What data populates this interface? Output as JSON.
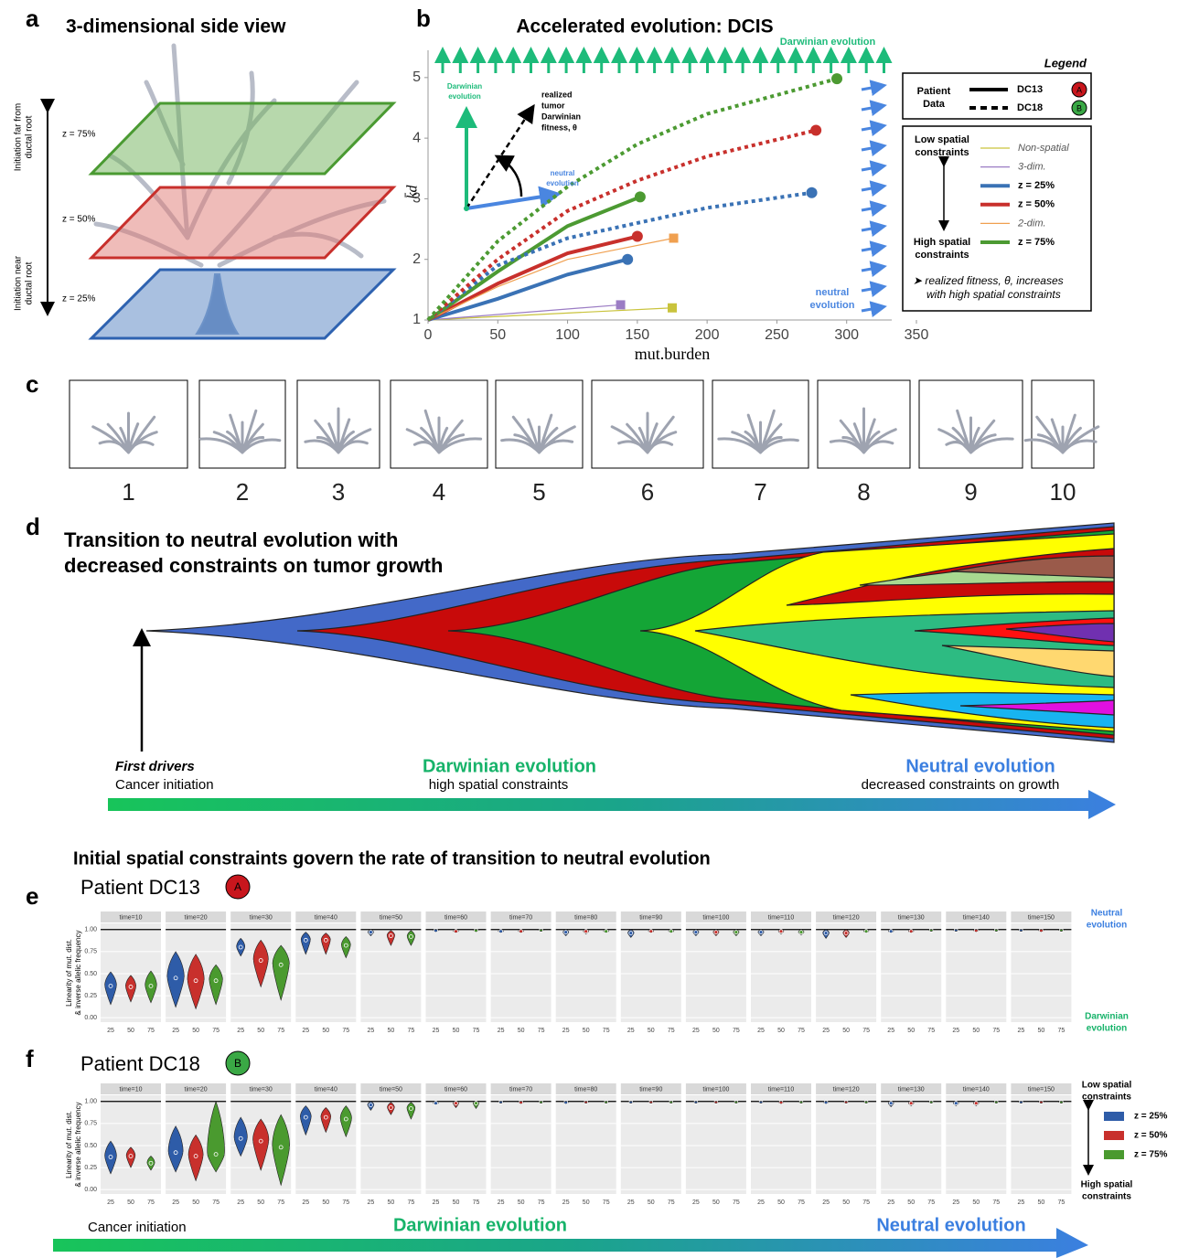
{
  "panel_labels": [
    "a",
    "b",
    "c",
    "d",
    "e",
    "f"
  ],
  "panel_a": {
    "title": "3-dimensional side view",
    "planes": [
      "z = 75%",
      "z = 50%",
      "z = 25%"
    ],
    "far_label": [
      "Initiation far from",
      "ductal root"
    ],
    "near_label": [
      "Initiation near",
      "ductal root"
    ]
  },
  "panel_c": {
    "labels": [
      "1",
      "2",
      "3",
      "4",
      "5",
      "6",
      "7",
      "8",
      "9",
      "10"
    ]
  },
  "panel_d": {
    "title": [
      "Transition to neutral evolution with",
      "decreased constraints on tumor growth"
    ],
    "start_bold": "First drivers",
    "start": "Cancer initiation",
    "middle_bold": "Darwinian evolution",
    "middle": "high spatial constraints",
    "end_bold": "Neutral evolution",
    "end": "decreased constraints on growth"
  },
  "section_title": "Initial spatial constraints govern the rate of transition to neutral evolution",
  "bottom_arrow": {
    "start": "Cancer initiation",
    "middle": "Darwinian evolution",
    "end": "Neutral evolution"
  },
  "chart_data": [
    {
      "type": "line",
      "title": "Accelerated evolution: DCIS",
      "xlabel": "mut.burden",
      "ylabel": "k̄d",
      "xlim": [
        0,
        350
      ],
      "ylim": [
        1,
        5.45
      ],
      "xticks": [
        0,
        50,
        100,
        150,
        200,
        250,
        300,
        350
      ],
      "yticks": [
        1,
        2,
        3,
        4,
        5
      ],
      "series": [
        {
          "name": "Non-spatial",
          "patient": "DC13",
          "color": "#c9c33c",
          "width": 1.2,
          "marker": "square",
          "x": [
            0,
            175
          ],
          "values": [
            1,
            1.2
          ]
        },
        {
          "name": "3-dim.",
          "patient": "DC13",
          "color": "#9b7cc4",
          "width": 1.2,
          "marker": "square",
          "x": [
            0,
            138
          ],
          "values": [
            1,
            1.25
          ]
        },
        {
          "name": "z = 25%",
          "patient": "DC13",
          "color": "#3a72b5",
          "width": 4,
          "marker": "circle",
          "x": [
            0,
            50,
            100,
            143
          ],
          "values": [
            1,
            1.35,
            1.75,
            2.0
          ]
        },
        {
          "name": "z = 50%",
          "patient": "DC13",
          "color": "#c8302c",
          "width": 4,
          "marker": "circle",
          "x": [
            0,
            50,
            100,
            150
          ],
          "values": [
            1,
            1.6,
            2.1,
            2.38
          ]
        },
        {
          "name": "2-dim.",
          "patient": "DC13",
          "color": "#f0a050",
          "width": 1.2,
          "marker": "square",
          "x": [
            0,
            50,
            100,
            176
          ],
          "values": [
            1,
            1.55,
            2.0,
            2.35
          ]
        },
        {
          "name": "z = 75%",
          "patient": "DC13",
          "color": "#4c9a32",
          "width": 4,
          "marker": "circle",
          "x": [
            0,
            50,
            100,
            152
          ],
          "values": [
            1,
            1.8,
            2.55,
            3.03
          ]
        },
        {
          "name": "z = 25%",
          "patient": "DC18",
          "color": "#3a72b5",
          "width": 4,
          "marker": "circle",
          "x": [
            0,
            50,
            100,
            150,
            200,
            275
          ],
          "values": [
            1,
            1.9,
            2.35,
            2.6,
            2.85,
            3.1
          ]
        },
        {
          "name": "z = 50%",
          "patient": "DC18",
          "color": "#c8302c",
          "width": 4,
          "marker": "circle",
          "x": [
            0,
            50,
            100,
            150,
            200,
            278
          ],
          "values": [
            1,
            2.0,
            2.8,
            3.3,
            3.7,
            4.13
          ]
        },
        {
          "name": "z = 75%",
          "patient": "DC18",
          "color": "#4c9a32",
          "width": 4,
          "marker": "circle",
          "x": [
            0,
            50,
            100,
            150,
            200,
            293
          ],
          "values": [
            1,
            2.3,
            3.2,
            3.9,
            4.4,
            4.98
          ]
        }
      ],
      "annotations": {
        "top": "Darwinian evolution",
        "right": [
          "neutral",
          "evolution"
        ],
        "inset_up": [
          "Darwinian",
          "evolution"
        ],
        "inset_diag": [
          "realized",
          "tumor",
          "Darwinian",
          "fitness, θ"
        ],
        "inset_right": [
          "neutral",
          "evolution"
        ]
      },
      "legend": {
        "title": "Legend",
        "patient_header": [
          "Patient",
          "Data"
        ],
        "patients": [
          {
            "name": "DC13",
            "badge": "A",
            "badge_color": "#c8161d",
            "dash": false
          },
          {
            "name": "DC18",
            "badge": "B",
            "badge_color": "#3aa845",
            "dash": true
          }
        ],
        "low": [
          "Low spatial",
          "constraints"
        ],
        "high": [
          "High spatial",
          "constraints"
        ],
        "note": [
          "➤ realized fitness, θ, increases",
          "with high spatial constraints"
        ]
      }
    },
    {
      "type": "violin",
      "title": "Patient DC13",
      "badge": "A",
      "badge_color": "#c8161d",
      "facets": [
        "time=10",
        "time=20",
        "time=30",
        "time=40",
        "time=50",
        "time=60",
        "time=70",
        "time=80",
        "time=90",
        "time=100",
        "time=110",
        "time=120",
        "time=130",
        "time=140",
        "time=150"
      ],
      "groups": [
        "25",
        "50",
        "75"
      ],
      "ylim": [
        -0.05,
        1.07
      ],
      "yticks": [
        {
          "value": 0,
          "label": "0.00"
        },
        {
          "value": 0.25,
          "label": "0.25"
        },
        {
          "value": 0.5,
          "label": "0.50"
        },
        {
          "value": 0.75,
          "label": "0.75"
        },
        {
          "value": 1,
          "label": "1.00"
        }
      ],
      "hline": 1,
      "ylabel": [
        "Linearity of mut. dist.",
        "& inverse allelic frequency"
      ],
      "side_top": [
        "Neutral",
        "evolution"
      ],
      "side_bottom": [
        "Darwinian",
        "evolution"
      ],
      "series": [
        {
          "name": "z = 25%",
          "color": "#2e5ca8",
          "values": [
            0.36,
            0.45,
            0.8,
            0.88,
            0.97,
            0.99,
            0.98,
            0.97,
            0.96,
            0.97,
            0.97,
            0.96,
            0.98,
            0.99,
            0.99
          ],
          "min": [
            0.15,
            0.12,
            0.7,
            0.72,
            0.93,
            0.97,
            0.96,
            0.93,
            0.91,
            0.93,
            0.93,
            0.9,
            0.96,
            0.98,
            0.98
          ],
          "max": [
            0.52,
            0.75,
            0.9,
            0.97,
            1,
            1,
            1,
            1,
            1,
            1,
            1,
            1,
            1,
            1,
            1
          ]
        },
        {
          "name": "z = 50%",
          "color": "#c8302c",
          "values": [
            0.35,
            0.42,
            0.65,
            0.88,
            0.93,
            0.98,
            0.98,
            0.98,
            0.98,
            0.97,
            0.98,
            0.96,
            0.98,
            0.99,
            0.99
          ],
          "min": [
            0.18,
            0.1,
            0.35,
            0.72,
            0.82,
            0.96,
            0.96,
            0.95,
            0.96,
            0.93,
            0.95,
            0.91,
            0.96,
            0.97,
            0.97
          ],
          "max": [
            0.48,
            0.72,
            0.88,
            0.96,
            0.99,
            1,
            1,
            1,
            1,
            1,
            1,
            1,
            1,
            1,
            1
          ]
        },
        {
          "name": "z = 75%",
          "color": "#4a9a2f",
          "values": [
            0.36,
            0.42,
            0.6,
            0.82,
            0.92,
            0.99,
            0.99,
            0.98,
            0.98,
            0.97,
            0.97,
            0.98,
            0.99,
            0.99,
            0.99
          ],
          "min": [
            0.17,
            0.15,
            0.2,
            0.68,
            0.82,
            0.97,
            0.98,
            0.96,
            0.96,
            0.93,
            0.94,
            0.96,
            0.98,
            0.98,
            0.98
          ],
          "max": [
            0.53,
            0.6,
            0.82,
            0.92,
            0.99,
            1,
            1,
            1,
            1,
            1,
            1,
            1,
            1,
            1,
            1
          ]
        }
      ]
    },
    {
      "type": "violin",
      "title": "Patient DC18",
      "badge": "B",
      "badge_color": "#3aa845",
      "facets": [
        "time=10",
        "time=20",
        "time=30",
        "time=40",
        "time=50",
        "time=60",
        "time=70",
        "time=80",
        "time=90",
        "time=100",
        "time=110",
        "time=120",
        "time=130",
        "time=140",
        "time=150"
      ],
      "groups": [
        "25",
        "50",
        "75"
      ],
      "ylim": [
        -0.05,
        1.07
      ],
      "yticks": [
        {
          "value": 0,
          "label": "0.00"
        },
        {
          "value": 0.25,
          "label": "0.25"
        },
        {
          "value": 0.5,
          "label": "0.50"
        },
        {
          "value": 0.75,
          "label": "0.75"
        },
        {
          "value": 1,
          "label": "1.00"
        }
      ],
      "hline": 1,
      "ylabel": [
        "Linearity of mut. dist.",
        "& inverse allelic frequency"
      ],
      "side_top": [
        "Low spatial",
        "constraints"
      ],
      "side_bottom": [
        "High spatial",
        "constraints"
      ],
      "legend": true,
      "series": [
        {
          "name": "z = 25%",
          "color": "#2e5ca8",
          "values": [
            0.37,
            0.42,
            0.58,
            0.82,
            0.96,
            0.98,
            0.99,
            0.99,
            0.99,
            0.99,
            0.99,
            0.99,
            0.98,
            0.98,
            0.99
          ],
          "min": [
            0.18,
            0.2,
            0.38,
            0.62,
            0.9,
            0.96,
            0.98,
            0.97,
            0.98,
            0.98,
            0.98,
            0.97,
            0.94,
            0.95,
            0.98
          ],
          "max": [
            0.55,
            0.72,
            0.82,
            0.95,
            1,
            1,
            1,
            1,
            1,
            1,
            1,
            1,
            1,
            1,
            1
          ]
        },
        {
          "name": "z = 50%",
          "color": "#c8302c",
          "values": [
            0.38,
            0.38,
            0.55,
            0.82,
            0.93,
            0.98,
            0.99,
            0.99,
            0.99,
            0.99,
            0.99,
            0.99,
            0.98,
            0.98,
            0.99
          ],
          "min": [
            0.25,
            0.1,
            0.22,
            0.65,
            0.85,
            0.93,
            0.97,
            0.98,
            0.98,
            0.98,
            0.97,
            0.98,
            0.95,
            0.95,
            0.98
          ],
          "max": [
            0.48,
            0.62,
            0.8,
            0.93,
            0.99,
            1,
            1,
            1,
            1,
            1,
            1,
            1,
            1,
            1,
            1
          ]
        },
        {
          "name": "z = 75%",
          "color": "#4a9a2f",
          "values": [
            0.3,
            0.4,
            0.48,
            0.8,
            0.92,
            0.98,
            0.99,
            0.99,
            0.99,
            0.99,
            0.99,
            0.99,
            0.99,
            0.99,
            0.99
          ],
          "min": [
            0.22,
            0.2,
            0.05,
            0.6,
            0.8,
            0.92,
            0.98,
            0.98,
            0.98,
            0.98,
            0.98,
            0.98,
            0.98,
            0.98,
            0.98
          ],
          "max": [
            0.38,
            1,
            0.85,
            0.95,
            0.99,
            1,
            1,
            1,
            1,
            1,
            1,
            1,
            1,
            1,
            1
          ]
        }
      ]
    }
  ]
}
